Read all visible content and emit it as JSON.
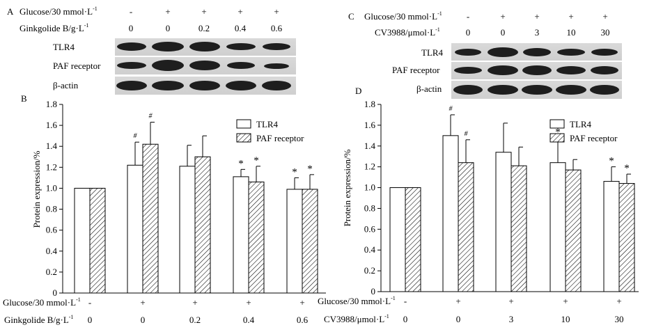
{
  "panelA": {
    "letter": "A",
    "row1": {
      "label": "Glucose/30 mmol·L",
      "sup": "-1",
      "values": [
        "-",
        "+",
        "+",
        "+",
        "+"
      ]
    },
    "row2": {
      "label": "Ginkgolide B/g·L",
      "sup": "-1",
      "values": [
        "0",
        "0",
        "0.2",
        "0.4",
        "0.6"
      ]
    },
    "blots": [
      "TLR4",
      "PAF receptor",
      "β-actin"
    ]
  },
  "panelC": {
    "letter": "C",
    "row1": {
      "label": "Glucose/30 mmol·L",
      "sup": "-1",
      "values": [
        "-",
        "+",
        "+",
        "+",
        "+"
      ]
    },
    "row2": {
      "label": "CV3988/μmol·L",
      "sup": "-1",
      "values": [
        "0",
        "0",
        "3",
        "10",
        "30"
      ]
    },
    "blots": [
      "TLR4",
      "PAF receptor",
      "β-actin"
    ]
  },
  "chart_data": [
    {
      "panel": "B",
      "type": "bar",
      "ylabel": "Protein expression/%",
      "ylim": [
        0,
        1.8
      ],
      "yticks": [
        "0",
        "0.2",
        "0.4",
        "0.6",
        "0.8",
        "1.0",
        "1.2",
        "1.4",
        "1.6",
        "1.8"
      ],
      "series": [
        {
          "name": "TLR4",
          "values": [
            1.0,
            1.22,
            1.21,
            1.11,
            0.99
          ],
          "errors": [
            0,
            0.22,
            0.2,
            0.07,
            0.11
          ],
          "marks": [
            "",
            "#",
            "",
            "*",
            "*"
          ]
        },
        {
          "name": "PAF receptor",
          "values": [
            1.0,
            1.42,
            1.3,
            1.06,
            0.99
          ],
          "errors": [
            0,
            0.21,
            0.2,
            0.15,
            0.14
          ],
          "marks": [
            "",
            "#",
            "",
            "*",
            "*"
          ]
        }
      ],
      "xrows": [
        {
          "label": "Glucose/30 mmol·L",
          "sup": "-1",
          "values": [
            "-",
            "+",
            "+",
            "+",
            "+"
          ]
        },
        {
          "label": "Ginkgolide B/g·L",
          "sup": "-1",
          "values": [
            "0",
            "0",
            "0.2",
            "0.4",
            "0.6"
          ]
        }
      ]
    },
    {
      "panel": "D",
      "type": "bar",
      "ylabel": "Protein expression/%",
      "ylim": [
        0,
        1.8
      ],
      "yticks": [
        "0",
        "0.2",
        "0.4",
        "0.6",
        "0.8",
        "1.0",
        "1.2",
        "1.4",
        "1.6",
        "1.8"
      ],
      "series": [
        {
          "name": "TLR4",
          "values": [
            1.0,
            1.5,
            1.34,
            1.24,
            1.06
          ],
          "errors": [
            0,
            0.2,
            0.28,
            0.24,
            0.14
          ],
          "marks": [
            "",
            "#",
            "",
            "*",
            "*"
          ]
        },
        {
          "name": "PAF receptor",
          "values": [
            1.0,
            1.24,
            1.21,
            1.17,
            1.04
          ],
          "errors": [
            0,
            0.22,
            0.18,
            0.1,
            0.09
          ],
          "marks": [
            "",
            "#",
            "",
            "",
            "*"
          ]
        }
      ],
      "xrows": [
        {
          "label": "Glucose/30 mmol·L",
          "sup": "-1",
          "values": [
            "-",
            "+",
            "+",
            "+",
            "+"
          ]
        },
        {
          "label": "CV3988/μmol·L",
          "sup": "-1",
          "values": [
            "0",
            "0",
            "3",
            "10",
            "30"
          ]
        }
      ]
    }
  ]
}
